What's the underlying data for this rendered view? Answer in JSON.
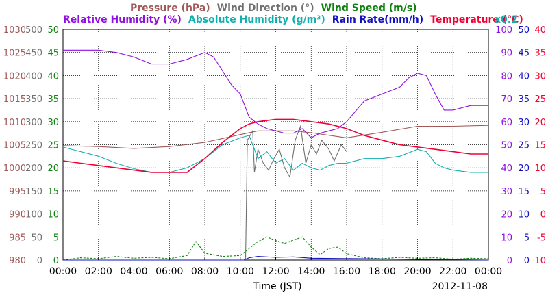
{
  "colors": {
    "pressure": "#a05858",
    "wind_direction": "#707070",
    "wind_speed": "#108010",
    "humidity": "#9010e0",
    "abs_humidity": "#10b0b0",
    "rain": "#1010c0",
    "temperature": "#ee0033",
    "grid": "#000000"
  },
  "chart_data": {
    "type": "line",
    "header_line1": [
      {
        "text": "Pressure (hPa)",
        "key": "pressure"
      },
      {
        "text": "Wind Direction (°)",
        "key": "wind_direction"
      },
      {
        "text": "Wind Speed (m/s)",
        "key": "wind_speed"
      }
    ],
    "header_line2": [
      {
        "text": "Relative Humidity (%)",
        "key": "humidity"
      },
      {
        "text": "Absolute Humidity (g/m³)",
        "key": "abs_humidity"
      },
      {
        "text": "Rain Rate(mm/h)",
        "key": "rain"
      },
      {
        "text": "Temperature (°C)",
        "key": "temperature"
      }
    ],
    "rain_multiplier": "x0.2",
    "xlabel": "Time (JST)",
    "date": "2012-11-08",
    "x_ticks": [
      "00:00",
      "02:00",
      "04:00",
      "06:00",
      "08:00",
      "10:00",
      "12:00",
      "14:00",
      "16:00",
      "18:00",
      "20:00",
      "22:00",
      "00:00"
    ],
    "xlim": [
      0,
      24
    ],
    "grid": true,
    "left_axes": [
      {
        "key": "pressure",
        "ticks": [
          "1030",
          "1025",
          "1020",
          "1015",
          "1010",
          "1005",
          "1000",
          "995",
          "990",
          "985",
          "980"
        ]
      },
      {
        "key": "wind_direction",
        "ticks": [
          "500",
          "450",
          "400",
          "350",
          "300",
          "250",
          "200",
          "150",
          "100",
          "50",
          "0"
        ]
      },
      {
        "key": "wind_speed",
        "ticks": [
          "50",
          "45",
          "40",
          "35",
          "30",
          "25",
          "20",
          "15",
          "10",
          "5",
          "0"
        ]
      }
    ],
    "right_axes": [
      {
        "key": "humidity",
        "ticks": [
          "100",
          "90",
          "80",
          "70",
          "60",
          "50",
          "40",
          "30",
          "20",
          "10",
          "0"
        ]
      },
      {
        "key": "rain",
        "ticks": [
          "50",
          "45",
          "40",
          "35",
          "30",
          "25",
          "20",
          "15",
          "10",
          "5",
          "0"
        ]
      },
      {
        "key": "temperature",
        "ticks": [
          "40",
          "35",
          "30",
          "25",
          "20",
          "15",
          "10",
          "5",
          "0",
          "-5",
          "-10"
        ]
      }
    ],
    "series": [
      {
        "name": "Pressure (hPa)",
        "key": "pressure",
        "ylim": [
          980,
          1030
        ],
        "x": [
          0,
          2,
          4,
          6,
          8,
          10,
          11,
          13,
          14,
          16,
          18,
          20,
          22,
          24
        ],
        "y": [
          1004.8,
          1004.6,
          1004.2,
          1004.6,
          1005.5,
          1007.2,
          1008,
          1008,
          1007.6,
          1006.5,
          1007.7,
          1009,
          1009,
          1009.2
        ]
      },
      {
        "name": "Wind Direction (°)",
        "key": "wind_direction",
        "ylim": [
          0,
          500
        ],
        "x": [
          10.3,
          10.4,
          10.7,
          10.8,
          11,
          11.3,
          11.6,
          11.9,
          12.2,
          12.5,
          12.8,
          13.1,
          13.4,
          13.7,
          14,
          14.3,
          14.6,
          15,
          15.3,
          15.7,
          16
        ],
        "y": [
          0,
          260,
          280,
          190,
          240,
          210,
          195,
          220,
          240,
          200,
          180,
          260,
          290,
          210,
          250,
          230,
          260,
          240,
          215,
          250,
          235
        ]
      },
      {
        "name": "Wind Speed (m/s)",
        "key": "wind_speed",
        "ylim": [
          0,
          50
        ],
        "x": [
          0,
          1,
          2,
          3,
          4,
          5,
          6,
          7,
          7.5,
          8,
          9,
          10,
          10.5,
          11,
          11.5,
          12,
          12.5,
          13,
          13.5,
          14,
          14.5,
          15,
          15.5,
          16,
          17,
          18,
          19,
          20,
          21,
          22,
          23,
          24
        ],
        "y": [
          0,
          0.5,
          0.3,
          0.8,
          0.4,
          0.6,
          0.3,
          1,
          4,
          1.5,
          0.8,
          1,
          2.5,
          4,
          5,
          4.2,
          3.6,
          4.3,
          5,
          2.8,
          1.2,
          2.5,
          2.8,
          1.4,
          0.5,
          0.3,
          0.6,
          0.4,
          0.5,
          0.2,
          0.4,
          0.3
        ]
      },
      {
        "name": "Relative Humidity (%)",
        "key": "humidity",
        "ylim": [
          0,
          100
        ],
        "x": [
          0,
          2,
          3,
          4,
          5,
          6,
          7,
          8,
          8.5,
          9,
          9.5,
          10,
          10.5,
          11,
          11.5,
          12,
          12.5,
          13,
          13.5,
          14,
          14.5,
          15,
          15.5,
          16,
          17,
          18,
          19,
          19.5,
          20,
          20.5,
          21,
          21.5,
          22,
          23,
          24
        ],
        "y": [
          91,
          91,
          90,
          88,
          85,
          85,
          87,
          90,
          88,
          82,
          76,
          72,
          62,
          59,
          57,
          56,
          55,
          55,
          57,
          53,
          55,
          56,
          57,
          60,
          69,
          72,
          75,
          79,
          81,
          80,
          72,
          65,
          65,
          67,
          67
        ]
      },
      {
        "name": "Absolute Humidity (g/m³)",
        "key": "abs_humidity",
        "ylim": [
          0,
          50
        ],
        "x": [
          0,
          1,
          2,
          3,
          4,
          5,
          6,
          7,
          8,
          9,
          10,
          10.5,
          11,
          11.5,
          12,
          12.5,
          13,
          13.5,
          14,
          14.5,
          15,
          15.5,
          16,
          17,
          18,
          19,
          20,
          20.5,
          21,
          21.5,
          22,
          23,
          24
        ],
        "y": [
          24.5,
          23.5,
          22.5,
          21,
          19.8,
          19,
          19,
          20,
          22,
          25,
          26.5,
          27,
          22,
          23.5,
          21,
          22,
          19.5,
          21,
          20,
          19.5,
          20.5,
          21,
          21,
          22,
          22,
          22.5,
          24,
          23.5,
          21,
          20,
          19.5,
          19,
          19
        ]
      },
      {
        "name": "Rain Rate(mm/h)",
        "key": "rain",
        "ylim": [
          0,
          50
        ],
        "x": [
          0,
          10.2,
          10.5,
          11,
          12,
          13,
          14,
          24
        ],
        "y": [
          0,
          0,
          0.5,
          0.8,
          0.6,
          0.7,
          0.4,
          0
        ]
      },
      {
        "name": "Temperature (°C)",
        "key": "temperature",
        "ylim": [
          -10,
          40
        ],
        "x": [
          0,
          1,
          2,
          3,
          4,
          5,
          6,
          7,
          8,
          9,
          10,
          10.5,
          11,
          12,
          13,
          14,
          15,
          16,
          17,
          18,
          19,
          20,
          21,
          22,
          23,
          24
        ],
        "y": [
          11.5,
          11,
          10.5,
          10,
          9.5,
          9,
          9,
          9,
          12,
          15.5,
          18.5,
          19.5,
          20,
          20.5,
          20.5,
          20,
          19.5,
          18.5,
          17,
          16,
          15,
          14.5,
          14,
          13.5,
          13,
          13
        ]
      }
    ]
  }
}
